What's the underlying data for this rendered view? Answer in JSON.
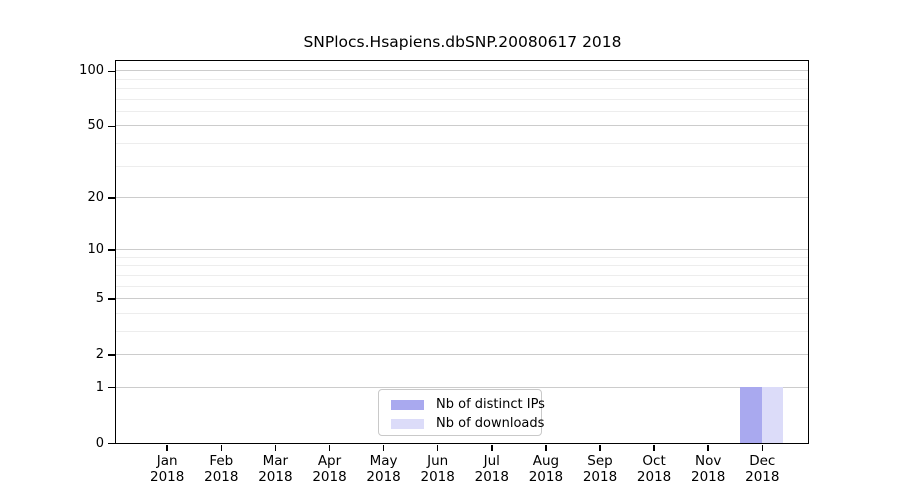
{
  "chart_data": {
    "type": "bar",
    "title": "SNPlocs.Hsapiens.dbSNP.20080617 2018",
    "categories": [
      "Jan",
      "Feb",
      "Mar",
      "Apr",
      "May",
      "Jun",
      "Jul",
      "Aug",
      "Sep",
      "Oct",
      "Nov",
      "Dec"
    ],
    "category_year": "2018",
    "series": [
      {
        "name": "Nb of distinct IPs",
        "color": "#a9a9ef",
        "values": [
          0,
          0,
          0,
          0,
          0,
          0,
          0,
          0,
          0,
          0,
          0,
          1
        ]
      },
      {
        "name": "Nb of downloads",
        "color": "#dcdcf9",
        "values": [
          0,
          0,
          0,
          0,
          0,
          0,
          0,
          0,
          0,
          0,
          0,
          1
        ]
      }
    ],
    "y_axis": {
      "scale": "log1p",
      "ticks": [
        100,
        50,
        20,
        10,
        5,
        2,
        1,
        0
      ],
      "minor_gridlines": [
        3,
        4,
        6,
        7,
        8,
        9,
        30,
        40,
        60,
        70,
        80,
        90
      ],
      "max": 113,
      "min": 0
    },
    "grid": {
      "major_color": "#cccccc",
      "minor_color": "#ededed",
      "enabled": true
    },
    "legend": {
      "position": "lower center"
    }
  }
}
